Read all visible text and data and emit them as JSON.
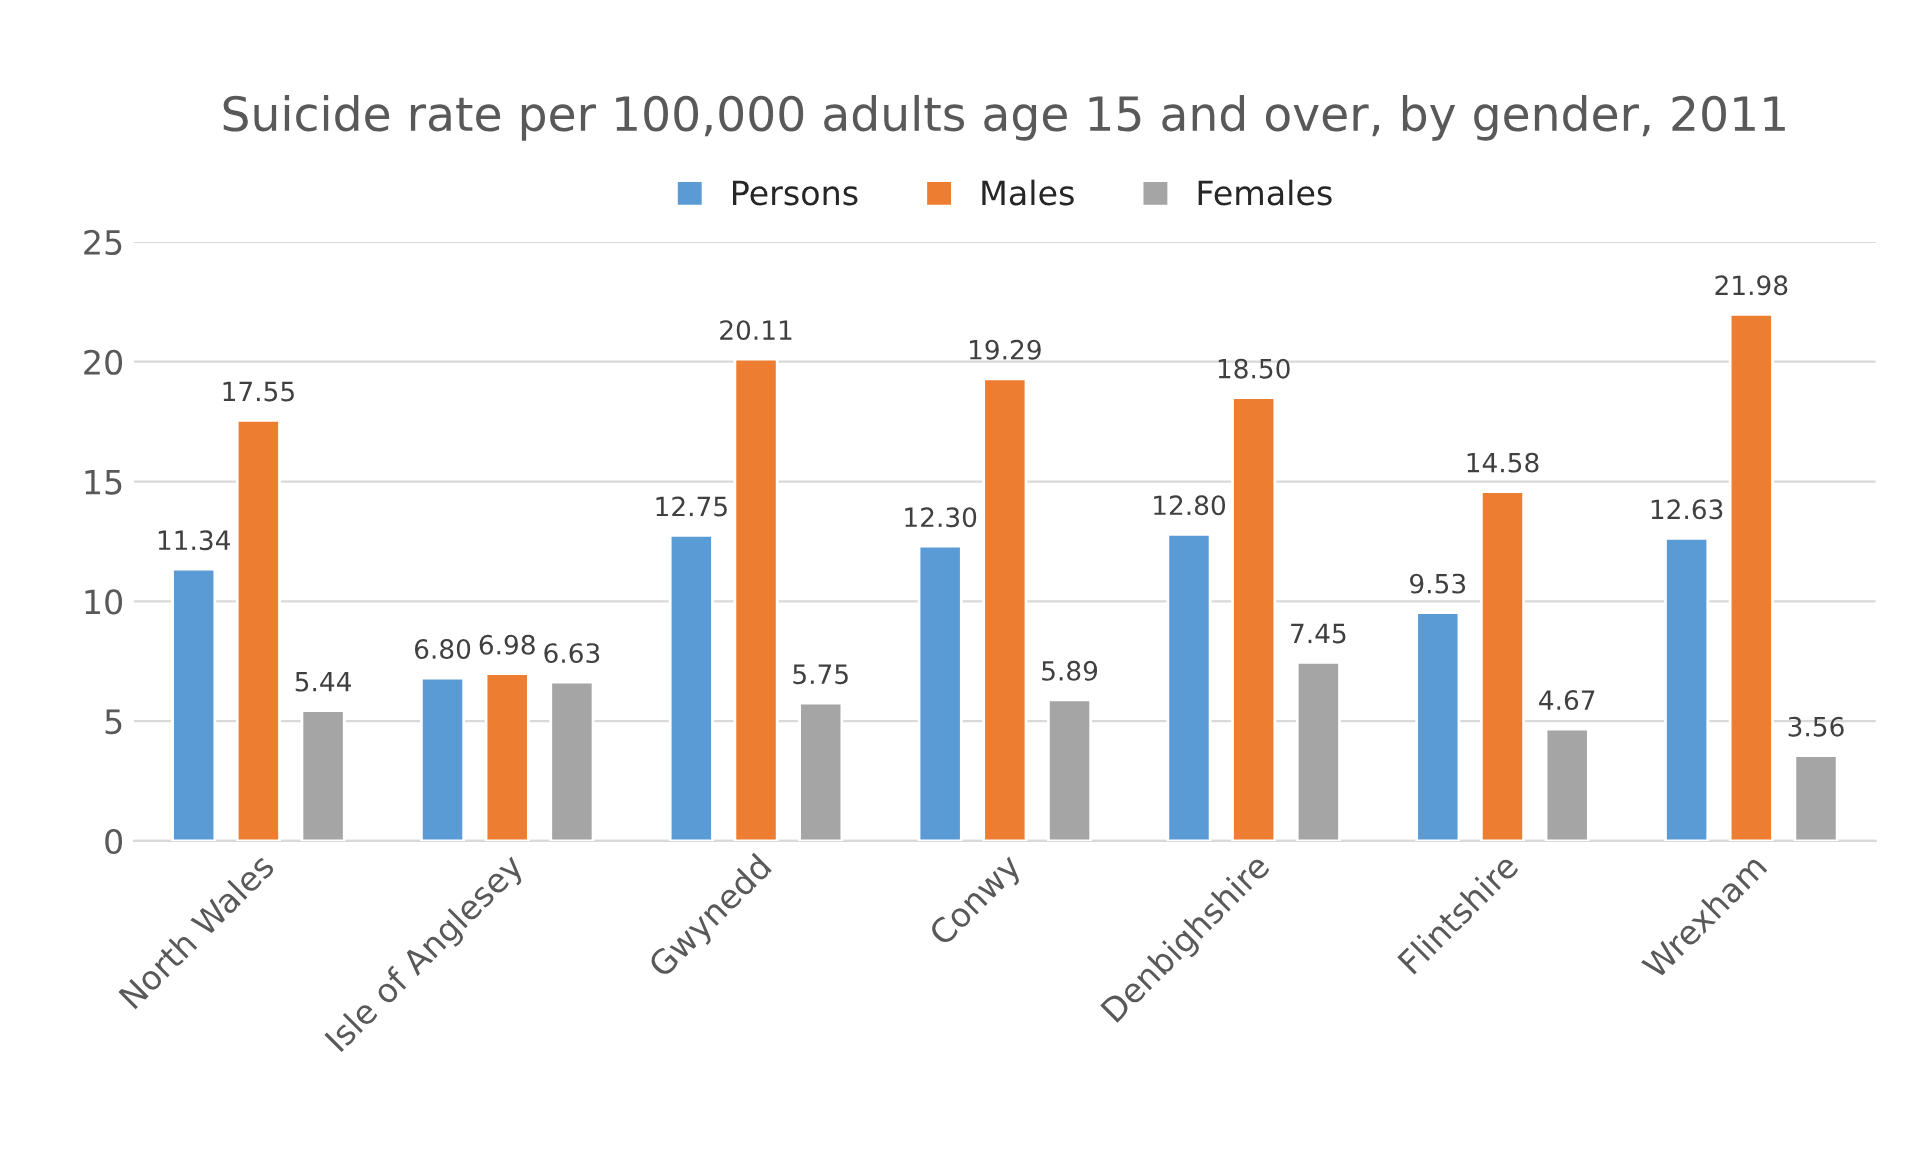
{
  "chart_data": {
    "type": "bar",
    "title": "Suicide rate per 100,000 adults age 15 and over, by gender, 2011",
    "categories": [
      "North Wales",
      "Isle of Anglesey",
      "Gwynedd",
      "Conwy",
      "Denbighshire",
      "Flintshire",
      "Wrexham"
    ],
    "series": [
      {
        "name": "Persons",
        "color": "#5b9bd5",
        "values": [
          11.34,
          6.8,
          12.75,
          12.3,
          12.8,
          9.53,
          12.63
        ],
        "value_labels": [
          "11.34",
          "6.80",
          "12.75",
          "12.30",
          "12.80",
          "9.53",
          "12.63"
        ]
      },
      {
        "name": "Males",
        "color": "#ed7d31",
        "values": [
          17.55,
          6.98,
          20.11,
          19.29,
          18.5,
          14.58,
          21.98
        ],
        "value_labels": [
          "17.55",
          "6.98",
          "20.11",
          "19.29",
          "18.50",
          "14.58",
          "21.98"
        ]
      },
      {
        "name": "Females",
        "color": "#a5a5a5",
        "values": [
          5.44,
          6.63,
          5.75,
          5.89,
          7.45,
          4.67,
          3.56
        ],
        "value_labels": [
          "5.44",
          "6.63",
          "5.75",
          "5.89",
          "7.45",
          "4.67",
          "3.56"
        ]
      }
    ],
    "ylim": [
      0,
      25
    ],
    "yticks": [
      0,
      5,
      10,
      15,
      20,
      25
    ],
    "grid": "y",
    "legend": "top"
  }
}
